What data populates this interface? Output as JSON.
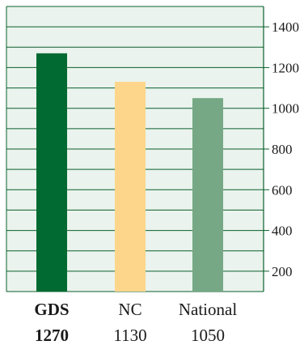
{
  "chart_data": {
    "type": "bar",
    "categories": [
      "GDS",
      "NC",
      "National"
    ],
    "values": [
      1270,
      1130,
      1050
    ],
    "value_labels": [
      "1270",
      "1130",
      "1050"
    ],
    "title": "",
    "xlabel": "",
    "ylabel": "",
    "ylim": [
      100,
      1500
    ],
    "y_ticks": [
      200,
      400,
      600,
      800,
      1000,
      1200,
      1400
    ],
    "y_tick_labels": [
      "200",
      "400",
      "600",
      "800",
      "1000",
      "1200",
      "1400"
    ],
    "y_axis_side": "right",
    "grid_step": 100,
    "grid": true,
    "legend": "none",
    "colors": [
      "#006a32",
      "#fed68b",
      "#76a885"
    ],
    "highlight_color": "#006a32",
    "highlight_category": "GDS",
    "line_color": "#0b5f2c",
    "background": "#eaf3ed"
  }
}
